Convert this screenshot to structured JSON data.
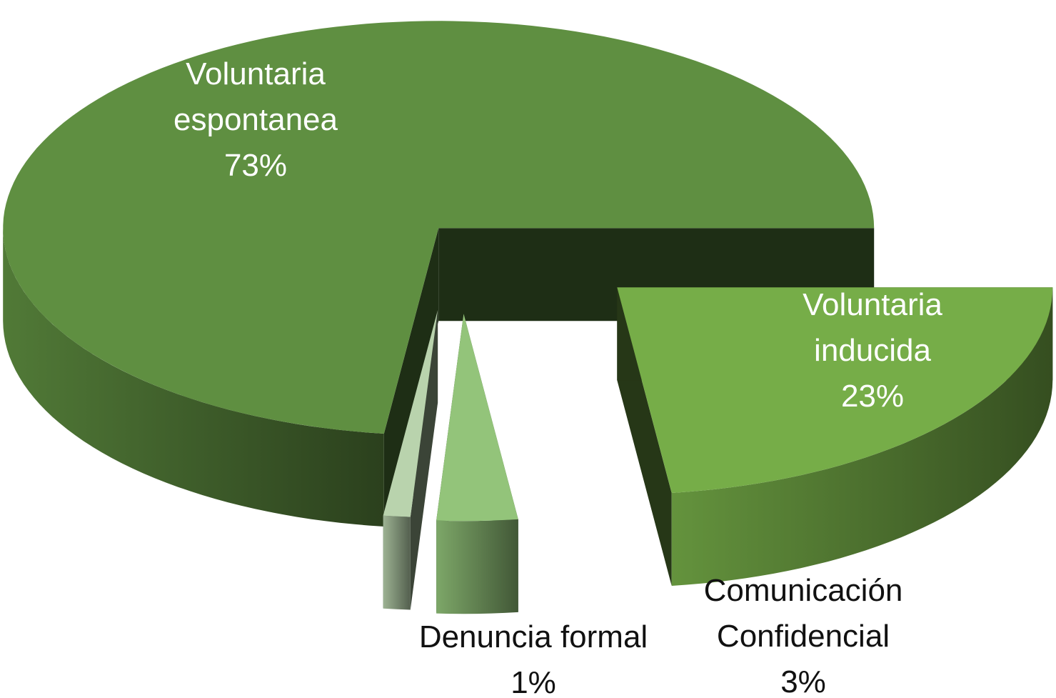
{
  "chart_data": {
    "type": "pie3d",
    "categories": [
      "Voluntaria espontanea",
      "Denuncia formal",
      "Comunicación Confidencial",
      "Voluntaria inducida"
    ],
    "values": [
      73,
      1,
      3,
      23
    ],
    "value_labels": [
      "73%",
      "1%",
      "3%",
      "23%"
    ],
    "colors": [
      "#5f8f41",
      "#b9d3ad",
      "#93c47a",
      "#76ad48"
    ]
  }
}
